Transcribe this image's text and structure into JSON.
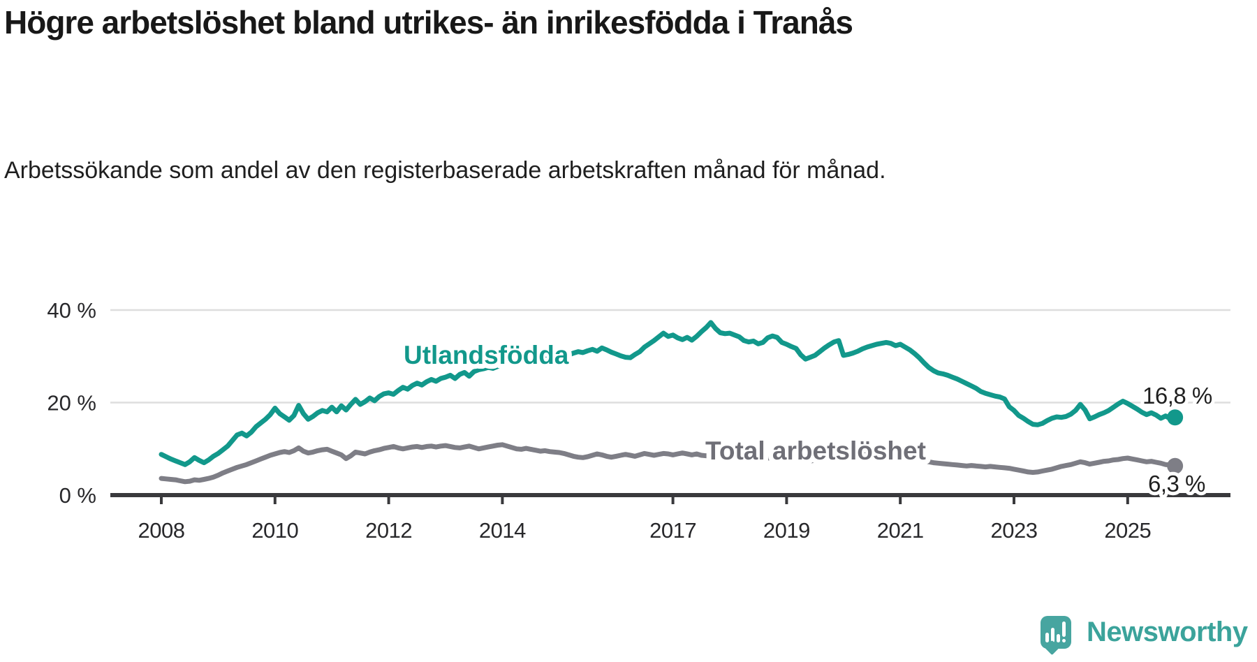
{
  "header": {
    "title": "Högre arbetslöshet bland utrikes- än inrikesfödda i Tranås",
    "subtitle": "Arbetssökande som andel av den registerbaserade arbetskraften månad för månad."
  },
  "chart_data": {
    "type": "line",
    "unit": "%",
    "grid": true,
    "legend_position": "inline-labels",
    "x_axis": {
      "tick_years": [
        2008,
        2010,
        2012,
        2014,
        2017,
        2019,
        2021,
        2023,
        2025
      ],
      "range_years": [
        2007.1,
        2026.8
      ]
    },
    "y_axis": {
      "ticks": [
        {
          "value": 40,
          "label": "40 %"
        },
        {
          "value": 20,
          "label": "20 %"
        },
        {
          "value": 0,
          "label": "0 %"
        }
      ],
      "ylim": [
        0,
        40
      ]
    },
    "frequency": "monthly",
    "start": "2008-01",
    "series": [
      {
        "name": "Utlandsfödda",
        "color": "#12988b",
        "label_color": "#12988b",
        "end_label": "16,8 %",
        "end_value": 16.8,
        "values": [
          8.8,
          8.3,
          7.8,
          7.4,
          7.0,
          6.6,
          7.2,
          8.1,
          7.5,
          7.0,
          7.6,
          8.4,
          9.0,
          9.8,
          10.6,
          11.8,
          13.0,
          13.4,
          12.8,
          13.6,
          14.8,
          15.6,
          16.4,
          17.4,
          18.8,
          17.6,
          16.9,
          16.2,
          17.2,
          19.4,
          17.6,
          16.4,
          17.0,
          17.8,
          18.3,
          18.0,
          19.0,
          18.0,
          19.3,
          18.4,
          19.6,
          20.7,
          19.6,
          20.2,
          21.0,
          20.4,
          21.3,
          21.9,
          22.1,
          21.8,
          22.6,
          23.3,
          22.9,
          23.7,
          24.2,
          23.8,
          24.5,
          25.0,
          24.6,
          25.2,
          25.5,
          25.9,
          25.2,
          26.1,
          26.5,
          25.7,
          26.7,
          27.1,
          27.3,
          27.6,
          27.4,
          27.8,
          28.0,
          28.3,
          28.1,
          28.5,
          28.8,
          28.6,
          29.0,
          29.3,
          29.1,
          29.5,
          29.7,
          30.0,
          30.2,
          30.5,
          30.3,
          30.7,
          31.0,
          30.8,
          31.2,
          31.5,
          31.1,
          31.8,
          31.4,
          30.9,
          30.5,
          30.1,
          29.8,
          29.7,
          30.4,
          31.0,
          32.0,
          32.7,
          33.4,
          34.2,
          35.0,
          34.3,
          34.6,
          34.0,
          33.6,
          34.1,
          33.5,
          34.3,
          35.3,
          36.2,
          37.3,
          36.0,
          35.1,
          34.9,
          35.0,
          34.6,
          34.2,
          33.4,
          33.1,
          33.3,
          32.7,
          33.0,
          34.0,
          34.4,
          34.1,
          33.0,
          32.6,
          32.1,
          31.7,
          30.3,
          29.4,
          29.8,
          30.2,
          31.0,
          31.8,
          32.5,
          33.1,
          33.4,
          30.2,
          30.4,
          30.7,
          31.1,
          31.6,
          32.0,
          32.3,
          32.6,
          32.8,
          33.0,
          32.8,
          32.3,
          32.6,
          32.0,
          31.4,
          30.6,
          29.7,
          28.6,
          27.6,
          26.9,
          26.4,
          26.2,
          25.9,
          25.5,
          25.1,
          24.6,
          24.1,
          23.6,
          23.1,
          22.4,
          22.0,
          21.7,
          21.4,
          21.2,
          20.8,
          19.1,
          18.3,
          17.2,
          16.6,
          15.9,
          15.3,
          15.2,
          15.5,
          16.1,
          16.6,
          16.9,
          16.8,
          17.0,
          17.5,
          18.3,
          19.6,
          18.4,
          16.5,
          16.9,
          17.4,
          17.8,
          18.3,
          19.0,
          19.7,
          20.3,
          19.8,
          19.2,
          18.6,
          17.9,
          17.4,
          17.8,
          17.3,
          16.6,
          17.1,
          16.5,
          16.8
        ]
      },
      {
        "name": "Total arbetslöshet",
        "color": "#7e7e86",
        "label_color": "#6f6f77",
        "end_label": "6,3 %",
        "end_value": 6.3,
        "values": [
          3.6,
          3.5,
          3.4,
          3.3,
          3.1,
          2.9,
          3.0,
          3.3,
          3.2,
          3.4,
          3.6,
          3.9,
          4.3,
          4.8,
          5.2,
          5.6,
          6.0,
          6.3,
          6.6,
          7.0,
          7.4,
          7.8,
          8.2,
          8.6,
          8.9,
          9.2,
          9.4,
          9.2,
          9.6,
          10.2,
          9.5,
          9.1,
          9.3,
          9.6,
          9.8,
          9.9,
          9.5,
          9.1,
          8.7,
          7.9,
          8.5,
          9.3,
          9.1,
          8.9,
          9.3,
          9.6,
          9.8,
          10.1,
          10.3,
          10.5,
          10.2,
          10.0,
          10.2,
          10.4,
          10.5,
          10.3,
          10.5,
          10.6,
          10.4,
          10.6,
          10.7,
          10.5,
          10.3,
          10.2,
          10.4,
          10.6,
          10.3,
          10.0,
          10.2,
          10.4,
          10.6,
          10.8,
          10.9,
          10.6,
          10.3,
          10.0,
          9.9,
          10.1,
          9.9,
          9.7,
          9.5,
          9.6,
          9.4,
          9.3,
          9.2,
          9.0,
          8.7,
          8.4,
          8.2,
          8.1,
          8.3,
          8.6,
          8.9,
          8.7,
          8.4,
          8.2,
          8.4,
          8.6,
          8.8,
          8.6,
          8.4,
          8.7,
          9.0,
          8.8,
          8.6,
          8.8,
          9.0,
          8.9,
          8.7,
          8.9,
          9.1,
          8.9,
          8.7,
          8.9,
          8.6,
          8.5,
          8.7,
          8.9,
          8.7,
          8.6,
          8.4,
          8.3,
          8.2,
          8.1,
          8.0,
          8.1,
          8.0,
          7.9,
          8.0,
          8.1,
          8.0,
          7.9,
          7.8,
          7.7,
          7.6,
          7.7,
          7.5,
          7.4,
          7.5,
          7.6,
          7.7,
          7.8,
          7.9,
          8.0,
          8.3,
          8.5,
          8.8,
          9.2,
          9.4,
          9.6,
          9.5,
          9.3,
          9.1,
          8.9,
          8.7,
          8.5,
          8.4,
          8.2,
          8.0,
          7.8,
          7.6,
          7.4,
          7.2,
          7.0,
          6.9,
          6.8,
          6.7,
          6.6,
          6.5,
          6.4,
          6.3,
          6.4,
          6.3,
          6.2,
          6.1,
          6.2,
          6.1,
          6.0,
          5.9,
          5.8,
          5.6,
          5.4,
          5.2,
          5.0,
          4.9,
          5.0,
          5.2,
          5.4,
          5.6,
          5.9,
          6.2,
          6.4,
          6.6,
          6.9,
          7.2,
          7.0,
          6.7,
          6.9,
          7.1,
          7.3,
          7.4,
          7.6,
          7.7,
          7.9,
          8.0,
          7.8,
          7.6,
          7.4,
          7.2,
          7.3,
          7.1,
          6.9,
          6.6,
          6.5,
          6.3
        ]
      }
    ],
    "colors": {
      "grid": "#dedede",
      "axis": "#39393c",
      "tick_text": "#28282b",
      "end_label_text": "#1f1f1f"
    }
  },
  "footer": {
    "brand": "Newsworthy",
    "brand_color": "#3ba39b"
  }
}
